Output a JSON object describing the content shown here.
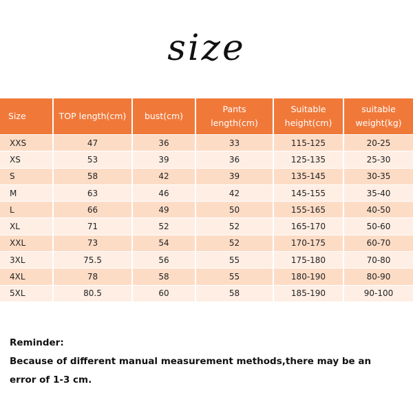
{
  "title": "size",
  "table": {
    "header": [
      [
        "Size"
      ],
      [
        "TOP length(cm)"
      ],
      [
        "bust(cm)"
      ],
      [
        "Pants",
        "length(cm)"
      ],
      [
        "Suitable",
        "height(cm)"
      ],
      [
        "suitable",
        "weight(kg)"
      ]
    ],
    "rows": [
      [
        "XXS",
        "47",
        "36",
        "33",
        "115-125",
        "20-25"
      ],
      [
        "XS",
        "53",
        "39",
        "36",
        "125-135",
        "25-30"
      ],
      [
        "S",
        "58",
        "42",
        "39",
        "135-145",
        "30-35"
      ],
      [
        "M",
        "63",
        "46",
        "42",
        "145-155",
        "35-40"
      ],
      [
        "L",
        "66",
        "49",
        "50",
        "155-165",
        "40-50"
      ],
      [
        "XL",
        "71",
        "52",
        "52",
        "165-170",
        "50-60"
      ],
      [
        "XXL",
        "73",
        "54",
        "52",
        "170-175",
        "60-70"
      ],
      [
        "3XL",
        "75.5",
        "56",
        "55",
        "175-180",
        "70-80"
      ],
      [
        "4XL",
        "78",
        "58",
        "55",
        "180-190",
        "80-90"
      ],
      [
        "5XL",
        "80.5",
        "60",
        "58",
        "185-190",
        "90-100"
      ]
    ]
  },
  "reminder": {
    "heading": "Reminder:",
    "lines": [
      "Because of different manual measurement methods,there may be an",
      "error of 1-3 cm."
    ]
  }
}
